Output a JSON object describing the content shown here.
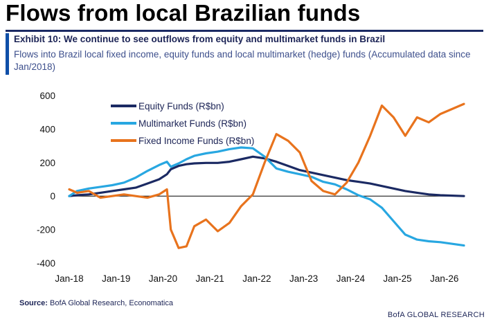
{
  "header": {
    "title": "Flows from local Brazilian funds",
    "exhibit_title": "Exhibit 10: We continue to see outflows from equity and multimarket funds in Brazil",
    "exhibit_subtitle": "Flows into Brazil local fixed income, equity funds and local multimarket (hedge) funds (Accumulated data since Jan/2018)"
  },
  "footer": {
    "source_label": "Source:",
    "source_text": "BofA Global Research, Economatica",
    "brand": "BofA GLOBAL RESEARCH"
  },
  "chart_data": {
    "type": "line",
    "title": "",
    "xlabel": "",
    "ylabel": "",
    "x_ticks": [
      "Jan-18",
      "Jan-19",
      "Jan-20",
      "Jan-21",
      "Jan-22",
      "Jan-23",
      "Jan-24",
      "Jan-25",
      "Jan-26"
    ],
    "xlim": [
      "2018-01",
      "2026-06"
    ],
    "ylim": [
      -400,
      600
    ],
    "y_ticks": [
      -400,
      -200,
      0,
      200,
      400,
      600
    ],
    "grid": false,
    "zero_line": true,
    "legend_position": "top-left",
    "series": [
      {
        "name": "Equity Funds (R$bn)",
        "color": "#1b2a63",
        "points": [
          [
            "2018-01",
            0
          ],
          [
            "2018-03",
            5
          ],
          [
            "2018-06",
            10
          ],
          [
            "2018-09",
            20
          ],
          [
            "2018-12",
            30
          ],
          [
            "2019-03",
            40
          ],
          [
            "2019-06",
            50
          ],
          [
            "2019-09",
            75
          ],
          [
            "2019-12",
            100
          ],
          [
            "2020-02",
            130
          ],
          [
            "2020-03",
            160
          ],
          [
            "2020-05",
            180
          ],
          [
            "2020-07",
            190
          ],
          [
            "2020-09",
            195
          ],
          [
            "2020-12",
            198
          ],
          [
            "2021-03",
            198
          ],
          [
            "2021-06",
            205
          ],
          [
            "2021-09",
            220
          ],
          [
            "2021-12",
            235
          ],
          [
            "2022-03",
            225
          ],
          [
            "2022-06",
            205
          ],
          [
            "2022-09",
            180
          ],
          [
            "2022-12",
            155
          ],
          [
            "2023-03",
            140
          ],
          [
            "2023-06",
            125
          ],
          [
            "2023-09",
            110
          ],
          [
            "2023-12",
            95
          ],
          [
            "2024-03",
            85
          ],
          [
            "2024-06",
            75
          ],
          [
            "2024-09",
            60
          ],
          [
            "2024-12",
            45
          ],
          [
            "2025-03",
            30
          ],
          [
            "2025-06",
            20
          ],
          [
            "2025-09",
            10
          ],
          [
            "2025-12",
            5
          ],
          [
            "2026-06",
            0
          ]
        ]
      },
      {
        "name": "Multimarket Funds (R$bn)",
        "color": "#28a7e1",
        "points": [
          [
            "2018-01",
            0
          ],
          [
            "2018-03",
            30
          ],
          [
            "2018-06",
            45
          ],
          [
            "2018-09",
            55
          ],
          [
            "2018-12",
            65
          ],
          [
            "2019-03",
            80
          ],
          [
            "2019-06",
            110
          ],
          [
            "2019-09",
            150
          ],
          [
            "2019-12",
            185
          ],
          [
            "2020-02",
            205
          ],
          [
            "2020-03",
            175
          ],
          [
            "2020-05",
            195
          ],
          [
            "2020-07",
            220
          ],
          [
            "2020-09",
            240
          ],
          [
            "2020-12",
            255
          ],
          [
            "2021-03",
            265
          ],
          [
            "2021-06",
            280
          ],
          [
            "2021-09",
            290
          ],
          [
            "2021-12",
            285
          ],
          [
            "2022-03",
            235
          ],
          [
            "2022-06",
            165
          ],
          [
            "2022-09",
            145
          ],
          [
            "2022-12",
            130
          ],
          [
            "2023-03",
            115
          ],
          [
            "2023-06",
            85
          ],
          [
            "2023-09",
            70
          ],
          [
            "2023-12",
            40
          ],
          [
            "2024-03",
            5
          ],
          [
            "2024-06",
            -20
          ],
          [
            "2024-09",
            -70
          ],
          [
            "2024-12",
            -150
          ],
          [
            "2025-03",
            -230
          ],
          [
            "2025-06",
            -260
          ],
          [
            "2025-09",
            -270
          ],
          [
            "2025-12",
            -275
          ],
          [
            "2026-06",
            -295
          ]
        ]
      },
      {
        "name": "Fixed Income Funds (R$bn)",
        "color": "#e8731d",
        "points": [
          [
            "2018-01",
            40
          ],
          [
            "2018-03",
            20
          ],
          [
            "2018-06",
            30
          ],
          [
            "2018-09",
            -10
          ],
          [
            "2018-12",
            0
          ],
          [
            "2019-03",
            10
          ],
          [
            "2019-06",
            0
          ],
          [
            "2019-09",
            -10
          ],
          [
            "2019-12",
            10
          ],
          [
            "2020-02",
            40
          ],
          [
            "2020-03",
            -200
          ],
          [
            "2020-05",
            -310
          ],
          [
            "2020-07",
            -300
          ],
          [
            "2020-09",
            -180
          ],
          [
            "2020-12",
            -140
          ],
          [
            "2021-03",
            -210
          ],
          [
            "2021-06",
            -160
          ],
          [
            "2021-09",
            -60
          ],
          [
            "2021-12",
            10
          ],
          [
            "2022-03",
            200
          ],
          [
            "2022-06",
            370
          ],
          [
            "2022-09",
            330
          ],
          [
            "2022-12",
            260
          ],
          [
            "2023-03",
            90
          ],
          [
            "2023-06",
            30
          ],
          [
            "2023-09",
            10
          ],
          [
            "2023-12",
            80
          ],
          [
            "2024-03",
            200
          ],
          [
            "2024-06",
            360
          ],
          [
            "2024-09",
            540
          ],
          [
            "2024-12",
            470
          ],
          [
            "2025-03",
            360
          ],
          [
            "2025-06",
            470
          ],
          [
            "2025-09",
            440
          ],
          [
            "2025-12",
            490
          ],
          [
            "2026-06",
            550
          ]
        ]
      }
    ]
  }
}
